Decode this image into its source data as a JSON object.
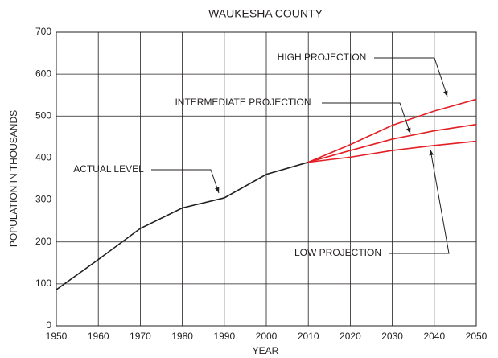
{
  "chart_data": {
    "type": "line",
    "title": "WAUKESHA COUNTY",
    "x_label": "YEAR",
    "y_label": "POPULATION IN  THOUSANDS",
    "x": [
      1950,
      1960,
      1970,
      1980,
      1990,
      2000,
      2010,
      2020,
      2030,
      2040,
      2050
    ],
    "series": [
      {
        "name": "ACTUAL LEVEL",
        "color": "#231f20",
        "values": [
          86,
          158,
          232,
          281,
          305,
          361,
          390,
          null,
          null,
          null,
          null
        ]
      },
      {
        "name": "HIGH PROJECTION",
        "color": "#e31e24",
        "values": [
          null,
          null,
          null,
          null,
          null,
          null,
          390,
          432,
          478,
          512,
          540
        ]
      },
      {
        "name": "INTERMEDIATE PROJECTION",
        "color": "#e31e24",
        "values": [
          null,
          null,
          null,
          null,
          null,
          null,
          390,
          418,
          445,
          465,
          480
        ]
      },
      {
        "name": "LOW PROJECTION",
        "color": "#e31e24",
        "values": [
          null,
          null,
          null,
          null,
          null,
          null,
          390,
          402,
          418,
          430,
          440
        ]
      }
    ],
    "xlim": [
      1950,
      2050
    ],
    "xticks": [
      1950,
      1960,
      1970,
      1980,
      1990,
      2000,
      2010,
      2020,
      2030,
      2040,
      2050
    ],
    "ylim": [
      0,
      700
    ],
    "yticks": [
      0,
      100,
      200,
      300,
      400,
      500,
      600,
      700
    ],
    "grid": true
  }
}
